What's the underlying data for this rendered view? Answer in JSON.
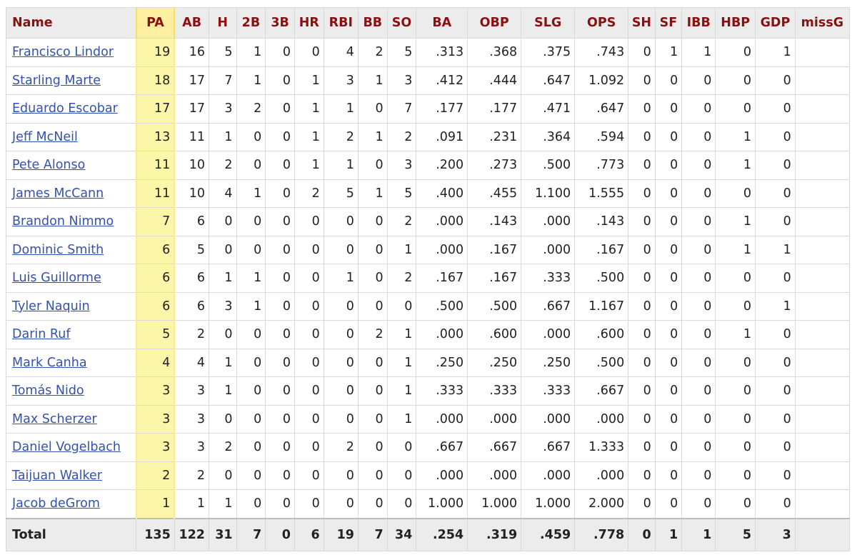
{
  "columns": [
    "Name",
    "PA",
    "AB",
    "H",
    "2B",
    "3B",
    "HR",
    "RBI",
    "BB",
    "SO",
    "BA",
    "OBP",
    "SLG",
    "OPS",
    "SH",
    "SF",
    "IBB",
    "HBP",
    "GDP",
    "missG"
  ],
  "rows": [
    [
      "Francisco Lindor",
      "19",
      "16",
      "5",
      "1",
      "0",
      "0",
      "4",
      "2",
      "5",
      ".313",
      ".368",
      ".375",
      ".743",
      "0",
      "1",
      "1",
      "0",
      "1",
      ""
    ],
    [
      "Starling Marte",
      "18",
      "17",
      "7",
      "1",
      "0",
      "1",
      "3",
      "1",
      "3",
      ".412",
      ".444",
      ".647",
      "1.092",
      "0",
      "0",
      "0",
      "0",
      "0",
      ""
    ],
    [
      "Eduardo Escobar",
      "17",
      "17",
      "3",
      "2",
      "0",
      "1",
      "1",
      "0",
      "7",
      ".177",
      ".177",
      ".471",
      ".647",
      "0",
      "0",
      "0",
      "0",
      "0",
      ""
    ],
    [
      "Jeff McNeil",
      "13",
      "11",
      "1",
      "0",
      "0",
      "1",
      "2",
      "1",
      "2",
      ".091",
      ".231",
      ".364",
      ".594",
      "0",
      "0",
      "0",
      "1",
      "0",
      ""
    ],
    [
      "Pete Alonso",
      "11",
      "10",
      "2",
      "0",
      "0",
      "1",
      "1",
      "0",
      "3",
      ".200",
      ".273",
      ".500",
      ".773",
      "0",
      "0",
      "0",
      "1",
      "0",
      ""
    ],
    [
      "James McCann",
      "11",
      "10",
      "4",
      "1",
      "0",
      "2",
      "5",
      "1",
      "5",
      ".400",
      ".455",
      "1.100",
      "1.555",
      "0",
      "0",
      "0",
      "0",
      "0",
      ""
    ],
    [
      "Brandon Nimmo",
      "7",
      "6",
      "0",
      "0",
      "0",
      "0",
      "0",
      "0",
      "2",
      ".000",
      ".143",
      ".000",
      ".143",
      "0",
      "0",
      "0",
      "1",
      "0",
      ""
    ],
    [
      "Dominic Smith",
      "6",
      "5",
      "0",
      "0",
      "0",
      "0",
      "0",
      "0",
      "1",
      ".000",
      ".167",
      ".000",
      ".167",
      "0",
      "0",
      "0",
      "1",
      "1",
      ""
    ],
    [
      "Luis Guillorme",
      "6",
      "6",
      "1",
      "1",
      "0",
      "0",
      "1",
      "0",
      "2",
      ".167",
      ".167",
      ".333",
      ".500",
      "0",
      "0",
      "0",
      "0",
      "0",
      ""
    ],
    [
      "Tyler Naquin",
      "6",
      "6",
      "3",
      "1",
      "0",
      "0",
      "0",
      "0",
      "0",
      ".500",
      ".500",
      ".667",
      "1.167",
      "0",
      "0",
      "0",
      "0",
      "1",
      ""
    ],
    [
      "Darin Ruf",
      "5",
      "2",
      "0",
      "0",
      "0",
      "0",
      "0",
      "2",
      "1",
      ".000",
      ".600",
      ".000",
      ".600",
      "0",
      "0",
      "0",
      "1",
      "0",
      ""
    ],
    [
      "Mark Canha",
      "4",
      "4",
      "1",
      "0",
      "0",
      "0",
      "0",
      "0",
      "1",
      ".250",
      ".250",
      ".250",
      ".500",
      "0",
      "0",
      "0",
      "0",
      "0",
      ""
    ],
    [
      "Tomás Nido",
      "3",
      "3",
      "1",
      "0",
      "0",
      "0",
      "0",
      "0",
      "1",
      ".333",
      ".333",
      ".333",
      ".667",
      "0",
      "0",
      "0",
      "0",
      "0",
      ""
    ],
    [
      "Max Scherzer",
      "3",
      "3",
      "0",
      "0",
      "0",
      "0",
      "0",
      "0",
      "1",
      ".000",
      ".000",
      ".000",
      ".000",
      "0",
      "0",
      "0",
      "0",
      "0",
      ""
    ],
    [
      "Daniel Vogelbach",
      "3",
      "3",
      "2",
      "0",
      "0",
      "0",
      "2",
      "0",
      "0",
      ".667",
      ".667",
      ".667",
      "1.333",
      "0",
      "0",
      "0",
      "0",
      "0",
      ""
    ],
    [
      "Taijuan Walker",
      "2",
      "2",
      "0",
      "0",
      "0",
      "0",
      "0",
      "0",
      "0",
      ".000",
      ".000",
      ".000",
      ".000",
      "0",
      "0",
      "0",
      "0",
      "0",
      ""
    ],
    [
      "Jacob deGrom",
      "1",
      "1",
      "1",
      "0",
      "0",
      "0",
      "0",
      "0",
      "0",
      "1.000",
      "1.000",
      "1.000",
      "2.000",
      "0",
      "0",
      "0",
      "0",
      "0",
      ""
    ]
  ],
  "total": [
    "Total",
    "135",
    "122",
    "31",
    "7",
    "0",
    "6",
    "19",
    "7",
    "34",
    ".254",
    ".319",
    ".459",
    ".778",
    "0",
    "1",
    "1",
    "5",
    "3",
    ""
  ],
  "colors": {
    "header_text": "#8b1111",
    "header_bg": "#ececec",
    "link": "#3451b2",
    "highlight_column": "#fcf6a8"
  }
}
